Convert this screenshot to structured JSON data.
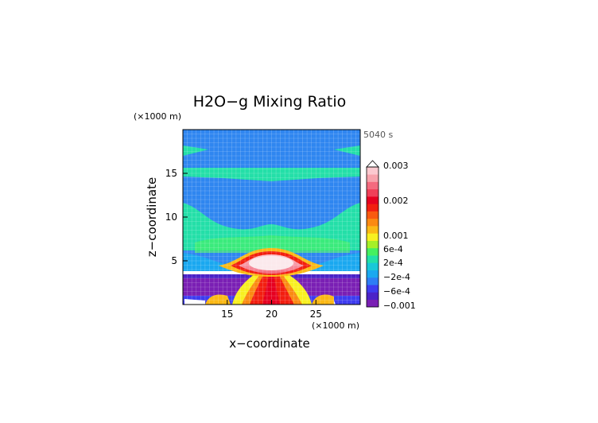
{
  "chart_data": {
    "type": "heatmap",
    "title": "H2O−g Mixing Ratio",
    "xlabel": "x−coordinate",
    "ylabel": "z−coordinate",
    "x_unit": "(×1000 m)",
    "y_unit": "(×1000 m)",
    "time_label": "5040 s",
    "xlim": [
      10,
      30
    ],
    "ylim": [
      0,
      20
    ],
    "xticks": [
      15,
      20,
      25
    ],
    "yticks": [
      5,
      10,
      15
    ],
    "colorbar": {
      "labels": [
        {
          "text": "0.003",
          "value": 0.003
        },
        {
          "text": "0.002",
          "value": 0.002
        },
        {
          "text": "0.001",
          "value": 0.001
        },
        {
          "text": "6e-4",
          "value": 0.0006
        },
        {
          "text": "2e-4",
          "value": 0.0002
        },
        {
          "text": "−2e-4",
          "value": -0.0002
        },
        {
          "text": "−6e-4",
          "value": -0.0006
        },
        {
          "text": "−0.001",
          "value": -0.001
        }
      ],
      "colors": [
        "#7a1fb4",
        "#4b23c8",
        "#3e3cf0",
        "#2e7df5",
        "#1aa8f0",
        "#18c8d8",
        "#22e0a8",
        "#45f060",
        "#a6f028",
        "#f8f020",
        "#fbb915",
        "#fb8a12",
        "#f95a10",
        "#f21e10",
        "#e60020",
        "#f04058",
        "#f46a7e",
        "#f7a3ac",
        "#fbc9cf"
      ]
    },
    "description_regions": [
      {
        "region": "background",
        "value_class": "−2e-4 to 2e-4"
      },
      {
        "region": "bands z≈10–12, 14.5–15.5, 17",
        "value_class": "≈ 2e-4"
      },
      {
        "region": "plume core z≈3–5, x≈18–22",
        "value_class": "> 0.003"
      },
      {
        "region": "lower layer z≈0.5–3",
        "value_class": "≤ −6e-4"
      }
    ]
  }
}
